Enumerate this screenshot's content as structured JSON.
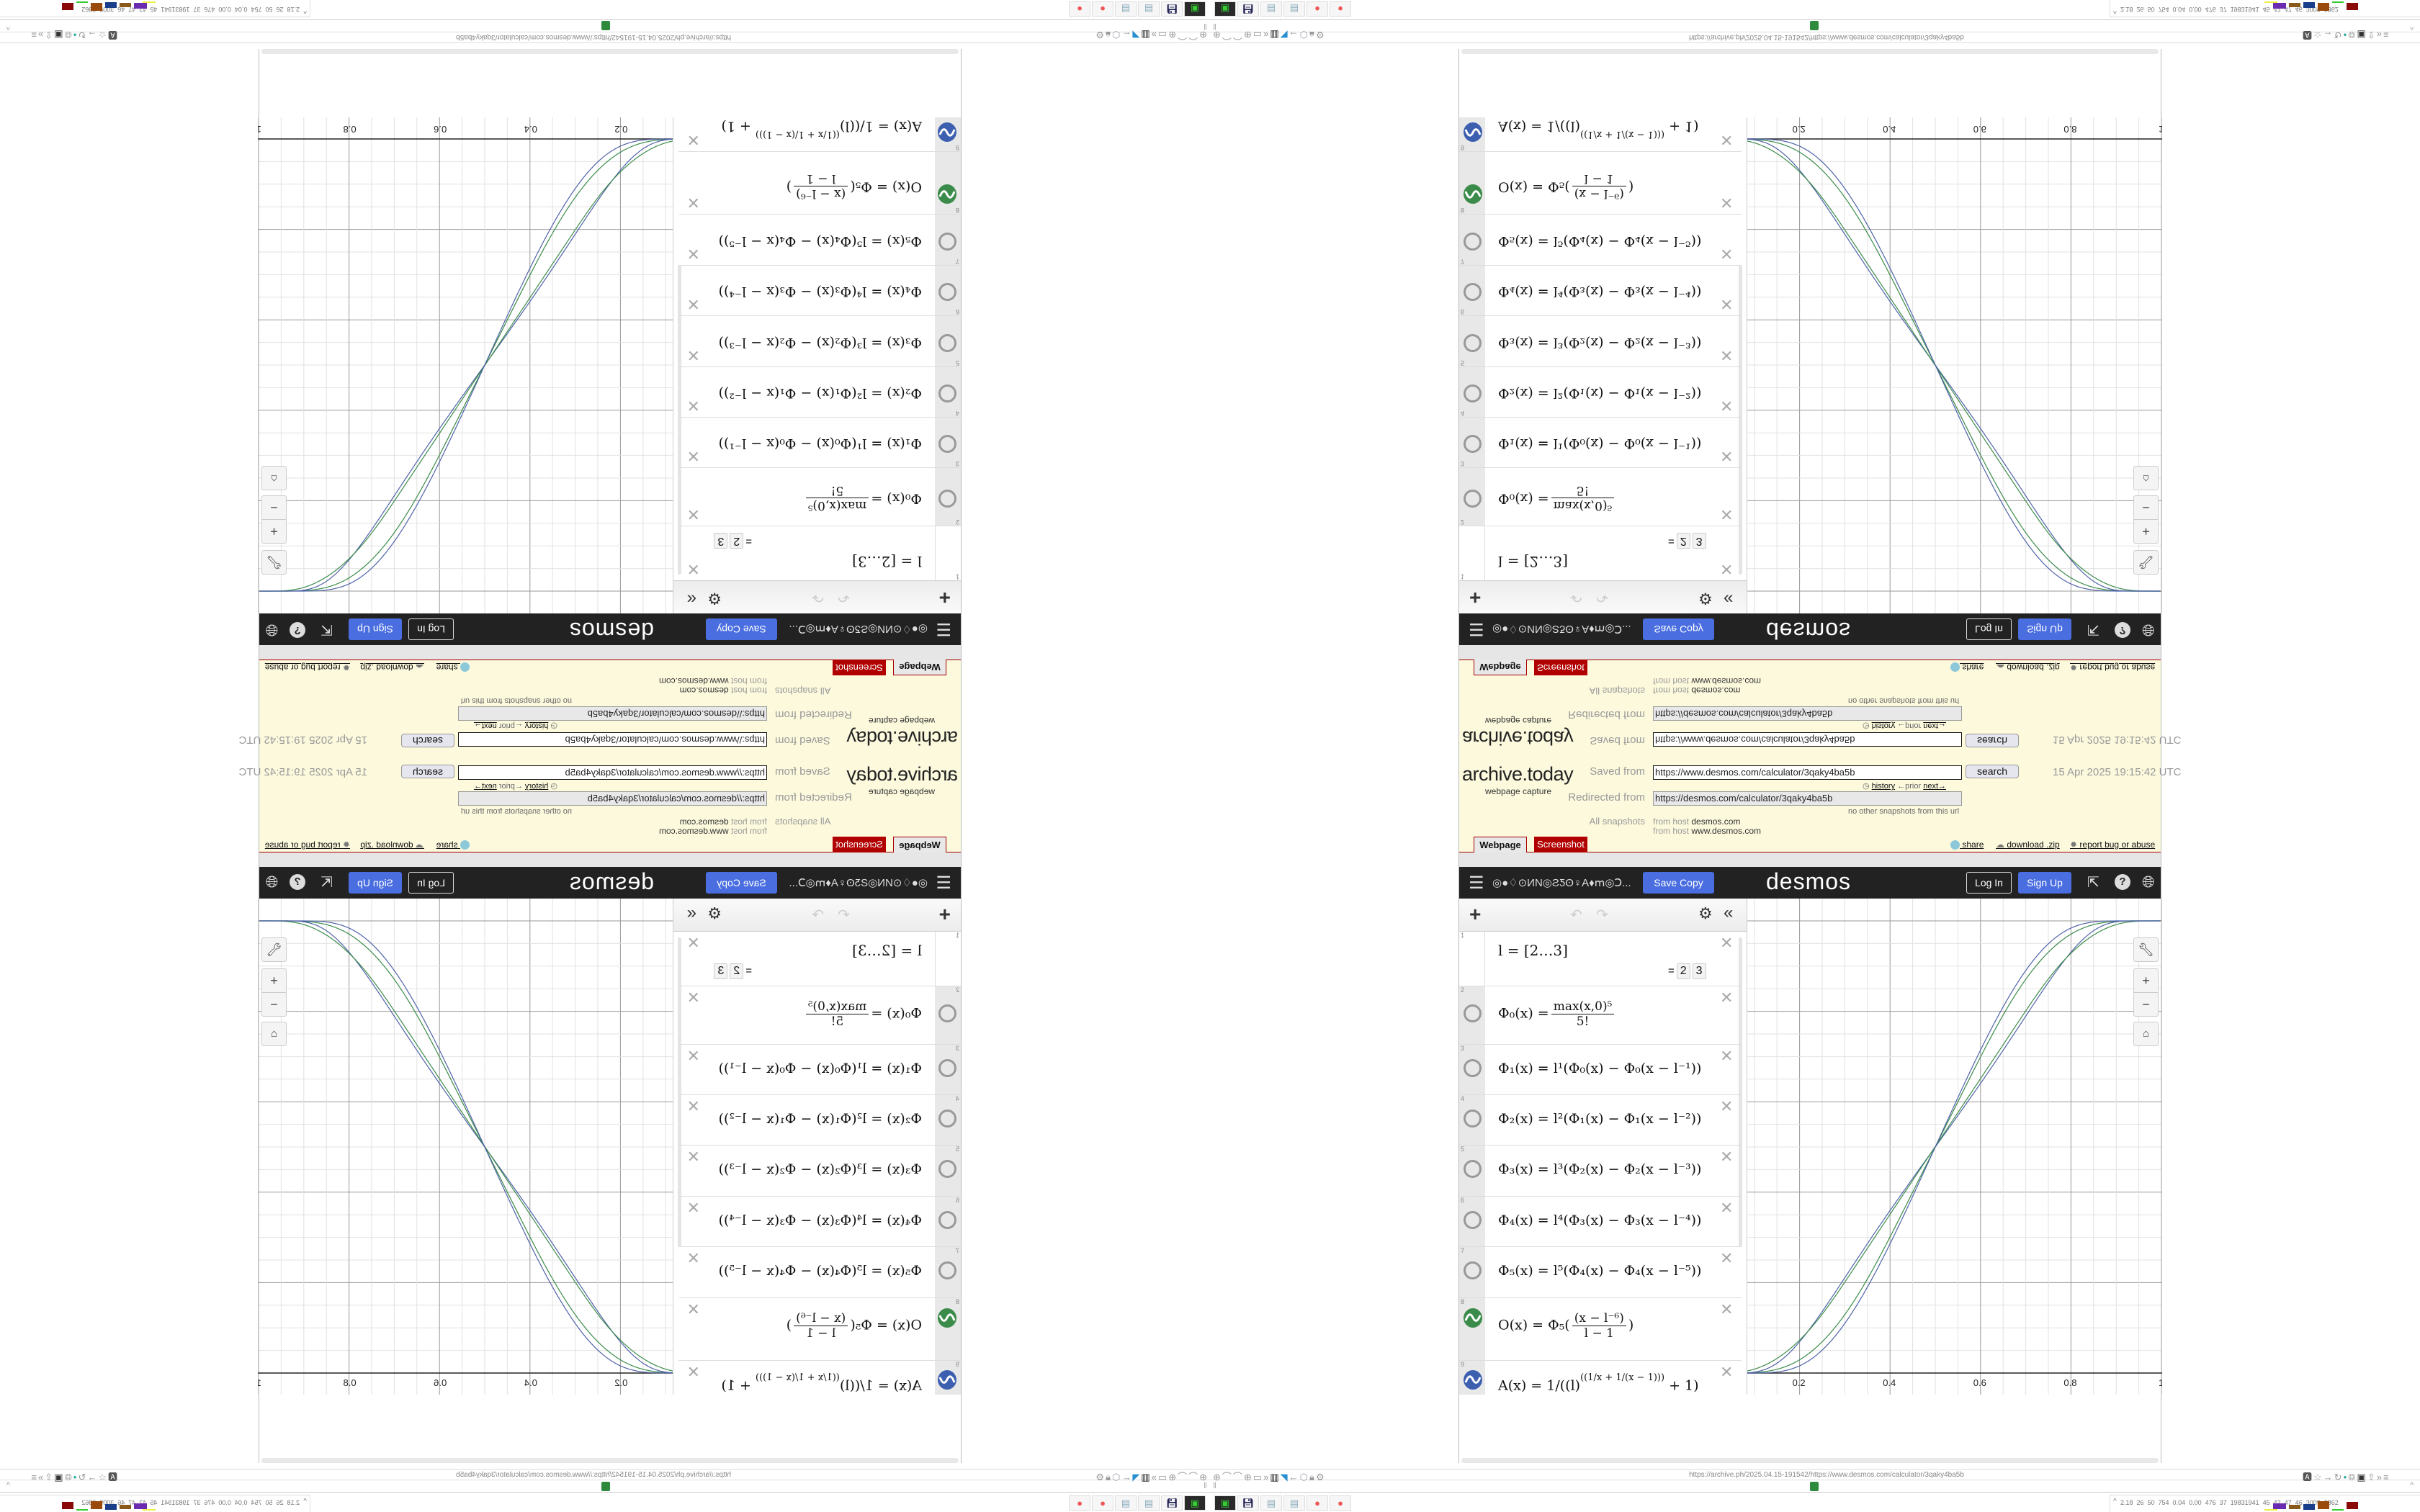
{
  "archive": {
    "logo": "archive.today",
    "logo_sub": "webpage capture",
    "saved_from_label": "Saved from",
    "saved_from_url": "https://www.desmos.com/calculator/3qaky4ba5b",
    "search_label": "search",
    "date": "15 Apr 2025 19:15:42 UTC",
    "history_label": "history",
    "prior_label": "←prior",
    "next_label": "next→",
    "redirected_label": "Redirected from",
    "redirected_url": "https://desmos.com/calculator/3qaky4ba5b",
    "no_other": "no other snapshots from this url",
    "all_snapshots_label": "All snapshots",
    "from_host_1_label": "from host",
    "from_host_1": "desmos.com",
    "from_host_2_label": "from host",
    "from_host_2": "www.desmos.com",
    "tabs": [
      {
        "label": "Webpage",
        "active": true
      },
      {
        "label": "Screenshot",
        "active": false
      }
    ],
    "share_label": "share",
    "download_label": "download .zip",
    "report_label": "report bug or abuse",
    "tab_color": "#b00000"
  },
  "desmos": {
    "title": "◎●♢⊙ИN◎ƧƼʘ♀A♦ⅿ◎Ↄ...",
    "save_copy": "Save Copy",
    "logo": "desmos",
    "log_in": "Log In",
    "sign_up": "Sign Up",
    "accent": "#4a6ee0",
    "expressions": [
      {
        "num": "1",
        "text": "l = [2…3]",
        "result_eq": "=",
        "result": [
          "2",
          "3"
        ]
      },
      {
        "num": "2",
        "icon": "hidden-circle",
        "lhs": "Φ₀(x) =",
        "numer": "max(x,0)⁵",
        "denom": "5!"
      },
      {
        "num": "3",
        "icon": "hidden-circle",
        "text": "Φ₁(x) = l¹(Φ₀(x) − Φ₀(x − l⁻¹))"
      },
      {
        "num": "4",
        "icon": "hidden-circle",
        "text": "Φ₂(x) = l²(Φ₁(x) − Φ₁(x − l⁻²))"
      },
      {
        "num": "5",
        "icon": "hidden-circle",
        "text": "Φ₃(x) = l³(Φ₂(x) − Φ₂(x − l⁻³))"
      },
      {
        "num": "6",
        "icon": "hidden-circle",
        "text": "Φ₄(x) = l⁴(Φ₃(x) − Φ₃(x − l⁻⁴))"
      },
      {
        "num": "7",
        "icon": "hidden-circle",
        "text": "Φ₅(x) = l⁵(Φ₄(x) − Φ₄(x − l⁻⁵))"
      },
      {
        "num": "8",
        "icon": "green-wave",
        "color": "#3b8c4a",
        "lhs": "O(x) = Φ₅(",
        "numer": "(x − l⁻⁶)",
        "denom": "l − 1",
        "rhs": ")"
      },
      {
        "num": "9",
        "icon": "blue-wave",
        "color": "#3d5fb0",
        "pre": "A(x) = 1/(",
        "base": "(l)",
        "exp": "((1/x + 1/(x − 1)))",
        "post": " + 1)"
      }
    ],
    "graph": {
      "x_ticks": [
        "0.2",
        "0.4",
        "0.6",
        "0.8",
        "1"
      ],
      "l_values": [
        2,
        3
      ],
      "series_colors": {
        "O": "#3b8c4a",
        "A": "#4f62a8"
      }
    }
  },
  "browser": {
    "url": "https://archive.ph/2025.04.15-191542/https://www.desmos.com/calculator/3qaky4ba5b",
    "tray_text": "2.18  26  50  754  0.04  0.00  476  37  19831941  45  42  47  46  3009  3862",
    "taskbar_apps": [
      "disk-manager",
      "floppy-save",
      "notepad",
      "notepad",
      "firefox",
      "firefox"
    ]
  }
}
